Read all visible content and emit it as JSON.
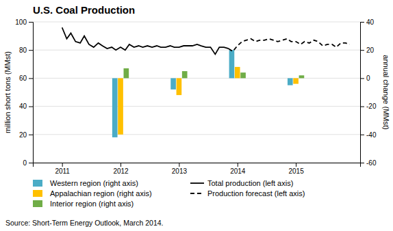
{
  "chart_data": {
    "type": "bar",
    "title": "U.S. Coal Production",
    "ylabel": "million short tons (MMst)",
    "y2label": "annual change (MMst)",
    "source": "Source: Short-Term Energy Outlook, March 2014.",
    "x": [
      2012,
      2013,
      2014,
      2015
    ],
    "xlim": [
      2010.5,
      2016.1
    ],
    "xticks": [
      2011,
      2012,
      2013,
      2014,
      2015
    ],
    "ylim": [
      0,
      100
    ],
    "yticks": [
      0,
      20,
      40,
      60,
      80,
      100
    ],
    "y2lim": [
      -60,
      40
    ],
    "y2ticks": [
      -60,
      -40,
      -20,
      0,
      20,
      40
    ],
    "grid": true,
    "legend": "bottom",
    "series": [
      {
        "name": "Western region (right axis)",
        "type": "bar",
        "axis": "y2",
        "color": "#4bacc6",
        "values": [
          -42,
          -8,
          20,
          -5
        ]
      },
      {
        "name": "Appalachian region (right axis)",
        "type": "bar",
        "axis": "y2",
        "color": "#ffc000",
        "values": [
          -40,
          -12,
          8,
          -4
        ]
      },
      {
        "name": "Interior region (right axis)",
        "type": "bar",
        "axis": "y2",
        "color": "#70ad47",
        "values": [
          7,
          5,
          4,
          2
        ]
      },
      {
        "name": "Total production (left axis)",
        "type": "line",
        "color": "#000000",
        "line_style": "solid",
        "x": [
          2011.0,
          2011.08,
          2011.15,
          2011.23,
          2011.31,
          2011.38,
          2011.46,
          2011.54,
          2011.62,
          2011.69,
          2011.77,
          2011.85,
          2011.92,
          2012.0,
          2012.08,
          2012.15,
          2012.23,
          2012.31,
          2012.38,
          2012.46,
          2012.54,
          2012.62,
          2012.69,
          2012.77,
          2012.85,
          2012.92,
          2013.0,
          2013.08,
          2013.15,
          2013.23,
          2013.31,
          2013.38,
          2013.46,
          2013.54,
          2013.62,
          2013.69,
          2013.77,
          2013.85
        ],
        "values": [
          96,
          88,
          92,
          86,
          85,
          90,
          84,
          82,
          85,
          83,
          81,
          82,
          80,
          82,
          80,
          84,
          82,
          83,
          82,
          83,
          82,
          83,
          82,
          82,
          83,
          82,
          82,
          83,
          83,
          83,
          84,
          83,
          82,
          82,
          77,
          82,
          82,
          81
        ]
      },
      {
        "name": "Production forecast (left axis)",
        "type": "line",
        "color": "#000000",
        "line_style": "dashed",
        "x": [
          2013.85,
          2013.92,
          2014.0,
          2014.08,
          2014.15,
          2014.23,
          2014.31,
          2014.38,
          2014.46,
          2014.54,
          2014.62,
          2014.69,
          2014.77,
          2014.85,
          2014.92,
          2015.0,
          2015.08,
          2015.15,
          2015.23,
          2015.31,
          2015.38,
          2015.46,
          2015.54,
          2015.62,
          2015.69,
          2015.77,
          2015.85,
          2015.92
        ],
        "values": [
          81,
          79,
          83,
          86,
          87,
          88,
          86,
          87,
          87,
          88,
          87,
          86,
          87,
          88,
          86,
          86,
          84,
          86,
          85,
          87,
          86,
          83,
          84,
          84,
          82,
          85,
          85,
          84
        ]
      }
    ]
  }
}
